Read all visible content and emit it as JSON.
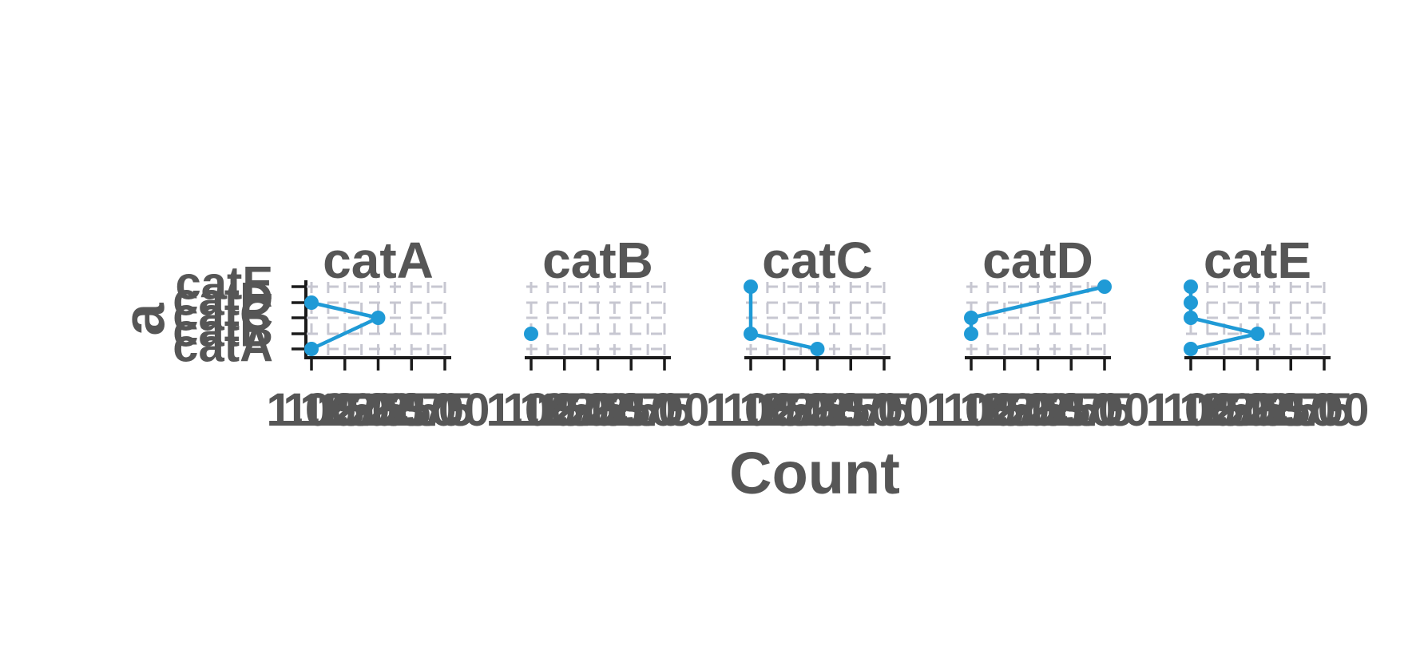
{
  "chart_data": {
    "type": "line",
    "facets": [
      "catA",
      "catB",
      "catC",
      "catD",
      "catE"
    ],
    "xlabel": "Count",
    "ylabel": "a",
    "xlim": [
      1.0,
      3.0
    ],
    "x_ticks": [
      "1.00",
      "1.25",
      "1.50",
      "1.75",
      "2.00",
      "2.25",
      "2.50",
      "2.75",
      "3.00"
    ],
    "y_categories": [
      "catA",
      "catB",
      "catC",
      "catD",
      "catE"
    ],
    "grid": true,
    "color": "#1f9ad6",
    "panels": [
      {
        "facet": "catA",
        "points": [
          {
            "x": 1,
            "y": "catD"
          },
          {
            "x": 2,
            "y": "catC"
          },
          {
            "x": 1,
            "y": "catA"
          }
        ]
      },
      {
        "facet": "catB",
        "points": [
          {
            "x": 1,
            "y": "catB"
          }
        ]
      },
      {
        "facet": "catC",
        "points": [
          {
            "x": 1,
            "y": "catE"
          },
          {
            "x": 1,
            "y": "catB"
          },
          {
            "x": 2,
            "y": "catA"
          }
        ]
      },
      {
        "facet": "catD",
        "points": [
          {
            "x": 3,
            "y": "catE"
          },
          {
            "x": 1,
            "y": "catC"
          },
          {
            "x": 1,
            "y": "catB"
          }
        ]
      },
      {
        "facet": "catE",
        "points": [
          {
            "x": 1,
            "y": "catE"
          },
          {
            "x": 1,
            "y": "catD"
          },
          {
            "x": 1,
            "y": "catC"
          },
          {
            "x": 2,
            "y": "catB"
          },
          {
            "x": 1,
            "y": "catA"
          }
        ]
      }
    ]
  }
}
